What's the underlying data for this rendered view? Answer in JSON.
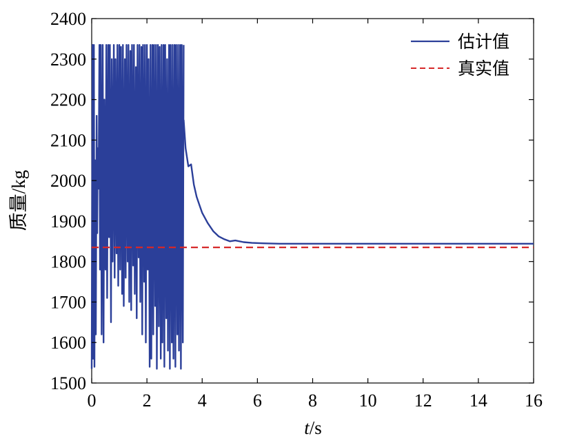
{
  "chart_data": {
    "type": "line",
    "xlabel_italic": "t",
    "xlabel_rest": "/s",
    "ylabel": "质量/kg",
    "xlim": [
      0,
      16
    ],
    "ylim": [
      1500,
      2400
    ],
    "xticks": [
      0,
      2,
      4,
      6,
      8,
      10,
      12,
      14,
      16
    ],
    "yticks": [
      1500,
      1600,
      1700,
      1800,
      1900,
      2000,
      2100,
      2200,
      2300,
      2400
    ],
    "grid": false,
    "legend_position": "top-right",
    "series": [
      {
        "name": "估计值",
        "style": "solid",
        "color": "#2b3f99",
        "oscillation": {
          "t": [
            0.0,
            0.03,
            0.05,
            0.08,
            0.1,
            0.12,
            0.15,
            0.18,
            0.2,
            0.22,
            0.25,
            0.28,
            0.3,
            0.33,
            0.36,
            0.4,
            0.43,
            0.46,
            0.5,
            0.53,
            0.56,
            0.6,
            0.63,
            0.66,
            0.7,
            0.73,
            0.76,
            0.8,
            0.83,
            0.86,
            0.9,
            0.93,
            0.96,
            1.0,
            1.03,
            1.06,
            1.1,
            1.13,
            1.16,
            1.2,
            1.23,
            1.26,
            1.3,
            1.33,
            1.36,
            1.4,
            1.43,
            1.46,
            1.5,
            1.53,
            1.56,
            1.6,
            1.63,
            1.66,
            1.7,
            1.73,
            1.76,
            1.8,
            1.83,
            1.86,
            1.9,
            1.93,
            1.96,
            2.0,
            2.03,
            2.06,
            2.1,
            2.13,
            2.16,
            2.2,
            2.23,
            2.26,
            2.3,
            2.33,
            2.36,
            2.4,
            2.43,
            2.46,
            2.5,
            2.53,
            2.56,
            2.6,
            2.63,
            2.66,
            2.7,
            2.73,
            2.76,
            2.8,
            2.83,
            2.86,
            2.9,
            2.93,
            2.96,
            3.0,
            3.03,
            3.06,
            3.1,
            3.13,
            3.16,
            3.2,
            3.23,
            3.26,
            3.3,
            3.33
          ],
          "y": [
            1535,
            2335,
            1560,
            2335,
            1540,
            2050,
            1620,
            2160,
            1870,
            2080,
            1980,
            2335,
            1780,
            2335,
            1620,
            2335,
            1600,
            2200,
            1780,
            2335,
            1710,
            2335,
            1860,
            2335,
            1650,
            2300,
            1800,
            2335,
            1760,
            2300,
            1820,
            2335,
            1740,
            2335,
            1780,
            2330,
            1720,
            2335,
            1690,
            2300,
            1760,
            2335,
            1800,
            2335,
            1700,
            2320,
            1680,
            2335,
            1790,
            2335,
            1720,
            2280,
            1660,
            2335,
            1810,
            2335,
            1700,
            2330,
            1620,
            2335,
            1750,
            2335,
            1600,
            2335,
            1780,
            2300,
            1540,
            2335,
            1560,
            2335,
            1620,
            2335,
            1690,
            2335,
            1535,
            2335,
            1640,
            2330,
            1560,
            2335,
            1600,
            2335,
            1540,
            2335,
            1660,
            2300,
            1580,
            2335,
            1535,
            2335,
            1600,
            2335,
            1560,
            2335,
            1540,
            2335,
            1620,
            2335,
            1580,
            2335,
            1535,
            2335,
            1600,
            2335
          ]
        },
        "convergence": {
          "t": [
            3.33,
            3.4,
            3.5,
            3.6,
            3.7,
            3.8,
            3.9,
            4.0,
            4.2,
            4.4,
            4.6,
            4.8,
            5.0,
            5.2,
            5.5,
            5.8,
            6.2,
            6.8,
            7.5,
            9.0,
            12.0,
            16.0
          ],
          "y": [
            2150,
            2080,
            2035,
            2040,
            1990,
            1960,
            1940,
            1920,
            1895,
            1875,
            1862,
            1855,
            1850,
            1852,
            1848,
            1846,
            1845,
            1844,
            1844,
            1844,
            1844,
            1844
          ]
        }
      },
      {
        "name": "真实值",
        "style": "dashed",
        "color": "#d62728",
        "t": [
          0,
          16
        ],
        "y": [
          1835,
          1835
        ]
      }
    ]
  }
}
